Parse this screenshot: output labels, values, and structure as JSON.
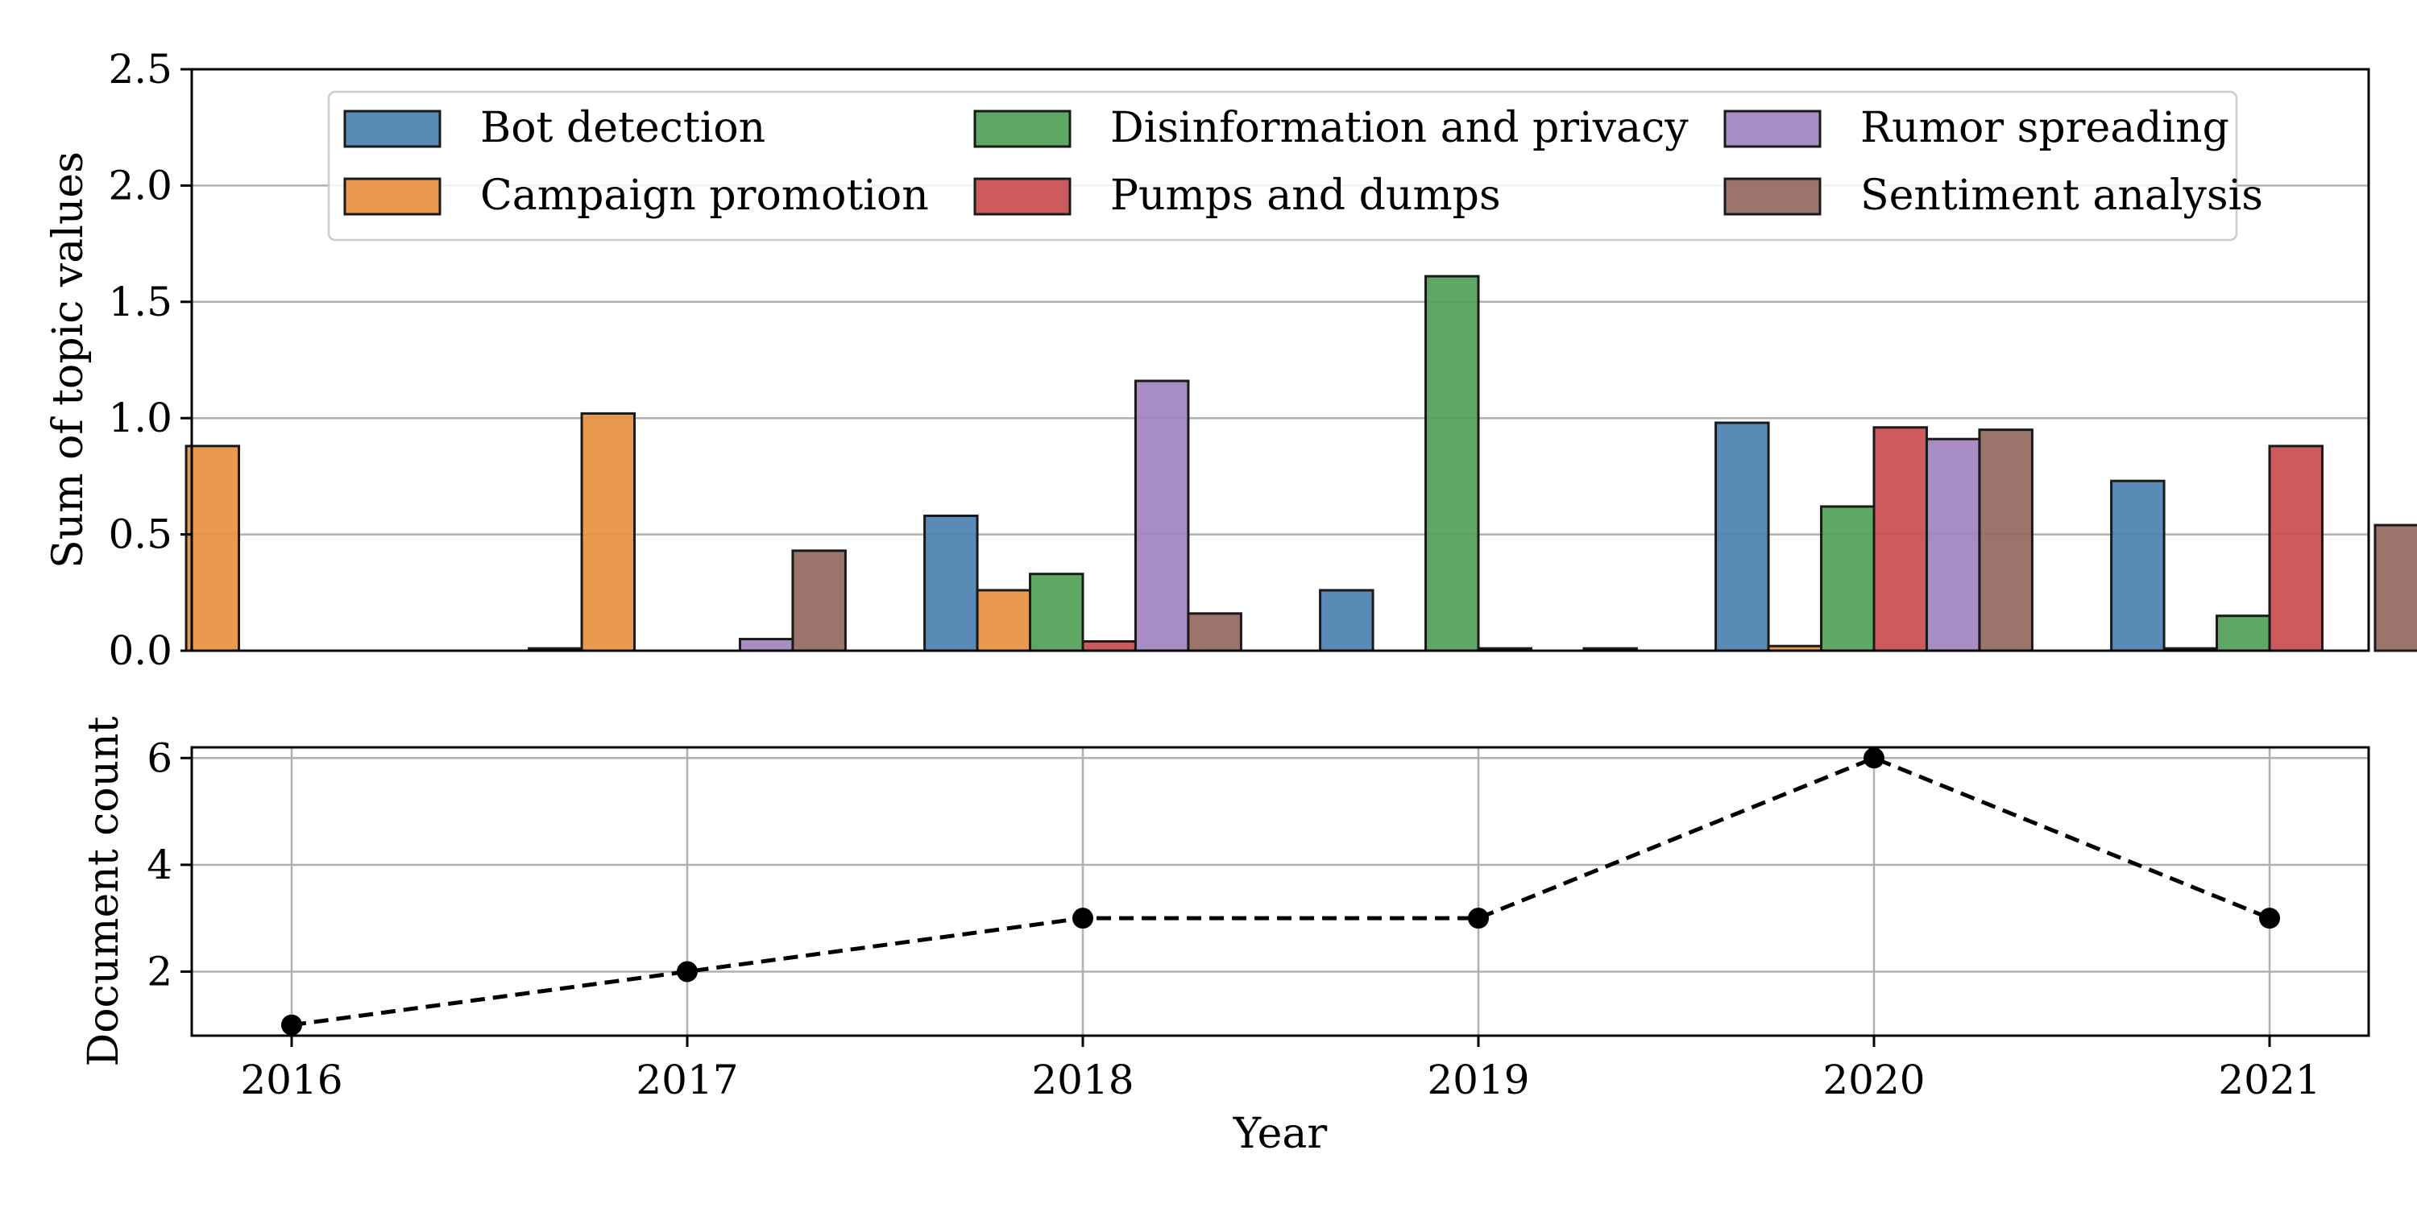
{
  "chart_data": [
    {
      "type": "bar",
      "ylabel": "Sum of topic values",
      "ylim": [
        0,
        2.5
      ],
      "yticks": [
        0.0,
        0.5,
        1.0,
        1.5,
        2.0,
        2.5
      ],
      "ytick_labels": [
        "0.0",
        "0.5",
        "1.0",
        "1.5",
        "2.0",
        "2.5"
      ],
      "grid": "horizontal",
      "legend_position": "top",
      "categories": [
        "2016",
        "2017",
        "2018",
        "2019",
        "2020",
        "2021"
      ],
      "series": [
        {
          "name": "Bot detection",
          "color": "#4c81b0",
          "values": [
            0.0,
            0.01,
            0.58,
            0.26,
            0.98,
            0.73
          ]
        },
        {
          "name": "Campaign promotion",
          "color": "#e8913f",
          "values": [
            0.88,
            1.02,
            0.26,
            0.0,
            0.02,
            0.01
          ]
        },
        {
          "name": "Disinformation and privacy",
          "color": "#51a156",
          "values": [
            0.0,
            0.0,
            0.33,
            1.61,
            0.62,
            0.15
          ]
        },
        {
          "name": "Pumps and dumps",
          "color": "#c94d4f",
          "values": [
            0.0,
            0.0,
            0.04,
            0.01,
            0.96,
            0.88
          ]
        },
        {
          "name": "Rumor spreading",
          "color": "#a183bf",
          "values": [
            0.0,
            0.05,
            1.16,
            0.0,
            0.91,
            0.0
          ]
        },
        {
          "name": "Sentiment analysis",
          "color": "#92695f",
          "values": [
            0.0,
            0.43,
            0.16,
            0.01,
            0.95,
            0.54
          ]
        }
      ]
    },
    {
      "type": "line",
      "xlabel": "Year",
      "ylabel": "Document count",
      "x": [
        "2016",
        "2017",
        "2018",
        "2019",
        "2020",
        "2021"
      ],
      "yticks": [
        2,
        4,
        6
      ],
      "ytick_labels": [
        "2",
        "4",
        "6"
      ],
      "grid": "both",
      "series": [
        {
          "color": "#000000",
          "line_style": "dashed",
          "marker": "circle",
          "values": [
            1,
            2,
            3,
            3,
            6,
            3
          ]
        }
      ]
    }
  ]
}
